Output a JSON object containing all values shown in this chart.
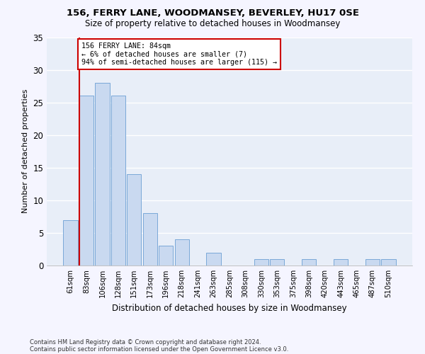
{
  "title1": "156, FERRY LANE, WOODMANSEY, BEVERLEY, HU17 0SE",
  "title2": "Size of property relative to detached houses in Woodmansey",
  "xlabel": "Distribution of detached houses by size in Woodmansey",
  "ylabel": "Number of detached properties",
  "categories": [
    "61sqm",
    "83sqm",
    "106sqm",
    "128sqm",
    "151sqm",
    "173sqm",
    "196sqm",
    "218sqm",
    "241sqm",
    "263sqm",
    "285sqm",
    "308sqm",
    "330sqm",
    "353sqm",
    "375sqm",
    "398sqm",
    "420sqm",
    "443sqm",
    "465sqm",
    "487sqm",
    "510sqm"
  ],
  "values": [
    7,
    26,
    28,
    26,
    14,
    8,
    3,
    4,
    0,
    2,
    0,
    0,
    1,
    1,
    0,
    1,
    0,
    1,
    0,
    1,
    1
  ],
  "bar_color": "#c9d9f0",
  "bar_edge_color": "#7aa8d8",
  "annotation_text_line1": "156 FERRY LANE: 84sqm",
  "annotation_text_line2": "← 6% of detached houses are smaller (7)",
  "annotation_text_line3": "94% of semi-detached houses are larger (115) →",
  "annotation_box_facecolor": "#ffffff",
  "annotation_box_edgecolor": "#cc0000",
  "vline_color": "#cc0000",
  "ylim": [
    0,
    35
  ],
  "yticks": [
    0,
    5,
    10,
    15,
    20,
    25,
    30,
    35
  ],
  "axes_facecolor": "#e8eef8",
  "fig_facecolor": "#f5f5ff",
  "grid_color": "#ffffff",
  "footnote1": "Contains HM Land Registry data © Crown copyright and database right 2024.",
  "footnote2": "Contains public sector information licensed under the Open Government Licence v3.0."
}
